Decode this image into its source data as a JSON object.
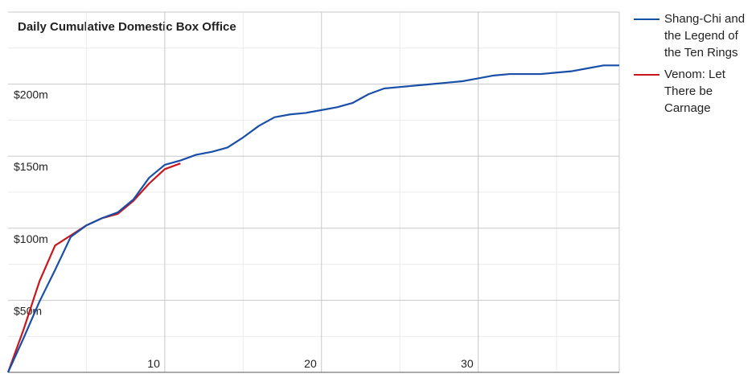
{
  "chart_data": {
    "type": "line",
    "title": "Daily Cumulative Domestic Box Office",
    "x": [
      0,
      1,
      2,
      3,
      4,
      5,
      6,
      7,
      8,
      9,
      10,
      11,
      12,
      13,
      14,
      15,
      16,
      17,
      18,
      19,
      20,
      21,
      22,
      23,
      24,
      25,
      26,
      27,
      28,
      29,
      30,
      31,
      32,
      33,
      34,
      35,
      36,
      37,
      38,
      39
    ],
    "series": [
      {
        "name": "Shang-Chi and the Legend of the Ten Rings",
        "color": "#1a4fa8",
        "values": [
          0,
          24,
          49,
          71,
          94,
          102,
          107,
          111,
          120,
          135,
          144,
          147,
          151,
          153,
          156,
          163,
          171,
          177,
          179,
          180,
          182,
          184,
          187,
          193,
          197,
          198,
          199,
          200,
          201,
          202,
          204,
          206,
          207,
          207,
          207,
          208,
          209,
          211,
          213,
          213
        ]
      },
      {
        "name": "Venom: Let There be Carnage",
        "color": "#c8161d",
        "values": [
          0,
          30,
          63,
          88,
          95,
          102,
          107,
          110,
          119,
          131,
          141,
          145,
          null,
          null,
          null,
          null,
          null,
          null,
          null,
          null,
          null,
          null,
          null,
          null,
          null,
          null,
          null,
          null,
          null,
          null,
          null,
          null,
          null,
          null,
          null,
          null,
          null,
          null,
          null,
          null
        ]
      }
    ],
    "xlim": [
      0,
      39
    ],
    "xticks": [
      10,
      20,
      30
    ],
    "minor_xticks": [
      5,
      15,
      25,
      35
    ],
    "ylim": [
      0,
      250
    ],
    "yticks": [
      {
        "value": 50,
        "label": "$50m"
      },
      {
        "value": 100,
        "label": "$100m"
      },
      {
        "value": 150,
        "label": "$150m"
      },
      {
        "value": 200,
        "label": "$200m"
      }
    ],
    "minor_yticks": [
      25,
      75,
      125,
      175,
      225
    ],
    "grid": true
  }
}
